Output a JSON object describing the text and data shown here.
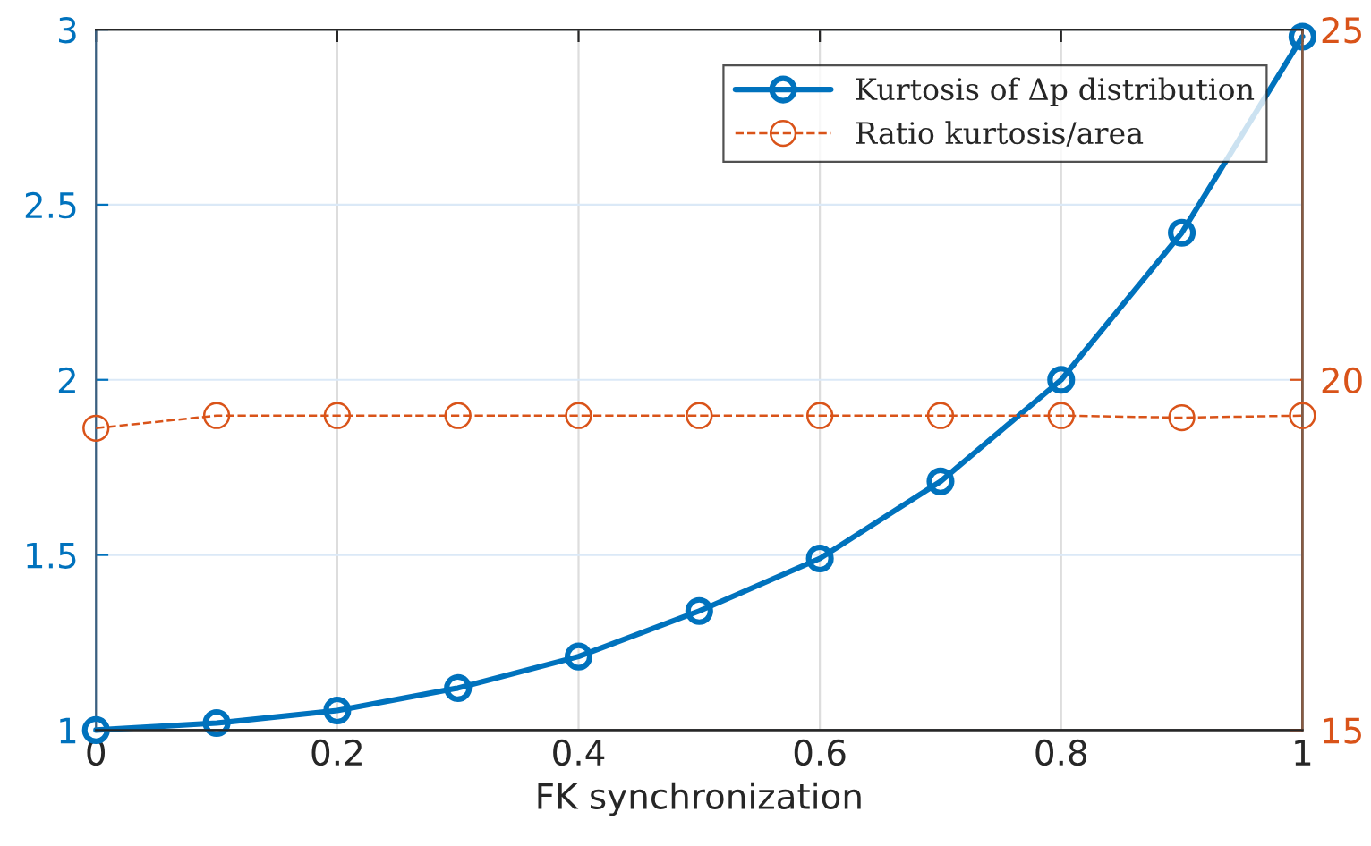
{
  "chart_data": {
    "type": "line",
    "xlabel": "FK synchronization",
    "x": [
      0,
      0.1,
      0.2,
      0.3,
      0.4,
      0.5,
      0.6,
      0.7,
      0.8,
      0.9,
      1.0
    ],
    "series": [
      {
        "name": "Kurtosis of Δp distribution",
        "color": "#0072bd",
        "line_style": "solid",
        "values": [
          1.0,
          1.02,
          1.056,
          1.12,
          1.21,
          1.34,
          1.49,
          1.71,
          2.0,
          2.42,
          2.98
        ]
      },
      {
        "name": "Ratio kurtosis/area",
        "color": "#d95319",
        "line_style": "dashed",
        "axis": "y2",
        "values": [
          19.31,
          19.49,
          19.49,
          19.49,
          19.49,
          19.49,
          19.49,
          19.49,
          19.49,
          19.46,
          19.49
        ]
      }
    ],
    "xlim": [
      0,
      1
    ],
    "xticks": [
      0,
      0.2,
      0.4,
      0.6,
      0.8,
      1
    ],
    "ylim": [
      1,
      3
    ],
    "yticks": [
      1,
      1.5,
      2,
      2.5,
      3
    ],
    "y2lim": [
      15,
      25
    ],
    "y2ticks": [
      15,
      20,
      25
    ],
    "grid": true,
    "legend": "top right",
    "marker": "circle"
  }
}
